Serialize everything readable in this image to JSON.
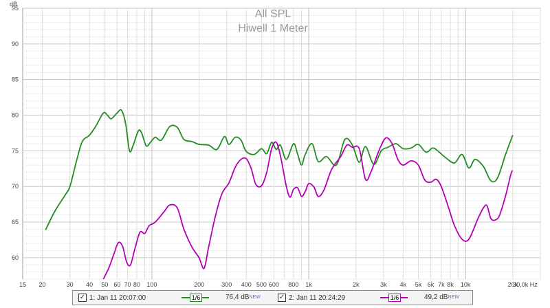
{
  "chart_data": {
    "type": "line",
    "title": "All SPL",
    "subtitle": "Hiwell 1 Meter",
    "ylabel": "dB",
    "xlabel": "Hz",
    "xscale": "log",
    "xlim": [
      15,
      30000
    ],
    "ylim": [
      57,
      95
    ],
    "y_ticks": [
      60,
      65,
      70,
      75,
      80,
      85,
      90,
      95
    ],
    "x_ticks": [
      {
        "v": 15,
        "label": "15"
      },
      {
        "v": 20,
        "label": "20"
      },
      {
        "v": 30,
        "label": "30"
      },
      {
        "v": 40,
        "label": "40"
      },
      {
        "v": 50,
        "label": "50"
      },
      {
        "v": 60,
        "label": "60"
      },
      {
        "v": 70,
        "label": "70"
      },
      {
        "v": 80,
        "label": "80"
      },
      {
        "v": 100,
        "label": "100"
      },
      {
        "v": 200,
        "label": "200"
      },
      {
        "v": 300,
        "label": "300"
      },
      {
        "v": 400,
        "label": "400"
      },
      {
        "v": 500,
        "label": "500"
      },
      {
        "v": 600,
        "label": "600"
      },
      {
        "v": 800,
        "label": "800"
      },
      {
        "v": 1000,
        "label": "1k"
      },
      {
        "v": 2000,
        "label": "2k"
      },
      {
        "v": 3000,
        "label": "3k"
      },
      {
        "v": 4000,
        "label": "4k"
      },
      {
        "v": 5000,
        "label": "5k"
      },
      {
        "v": 6000,
        "label": "6k"
      },
      {
        "v": 7000,
        "label": "7k"
      },
      {
        "v": 8000,
        "label": "8k"
      },
      {
        "v": 10000,
        "label": "10k"
      },
      {
        "v": 20000,
        "label": "20k"
      },
      {
        "v": 30000,
        "label": "30,0k Hz"
      }
    ],
    "grid": true,
    "series": [
      {
        "name": "1: Jan 11 20:07:00",
        "color": "#228b22",
        "points": [
          [
            21,
            63.9
          ],
          [
            24,
            66.5
          ],
          [
            28,
            68.8
          ],
          [
            30,
            70.0
          ],
          [
            33,
            73.5
          ],
          [
            36,
            76.3
          ],
          [
            40,
            77.2
          ],
          [
            44,
            78.5
          ],
          [
            49,
            80.3
          ],
          [
            52,
            80.0
          ],
          [
            55,
            79.5
          ],
          [
            60,
            80.3
          ],
          [
            64,
            80.7
          ],
          [
            68,
            78.8
          ],
          [
            72,
            75.0
          ],
          [
            76,
            75.8
          ],
          [
            82,
            77.8
          ],
          [
            86,
            77.5
          ],
          [
            92,
            75.7
          ],
          [
            98,
            76.2
          ],
          [
            105,
            76.9
          ],
          [
            115,
            76.5
          ],
          [
            130,
            78.4
          ],
          [
            145,
            78.3
          ],
          [
            160,
            76.6
          ],
          [
            180,
            76.3
          ],
          [
            200,
            75.9
          ],
          [
            230,
            75.8
          ],
          [
            260,
            75.2
          ],
          [
            290,
            77.0
          ],
          [
            310,
            75.9
          ],
          [
            340,
            76.9
          ],
          [
            370,
            76.5
          ],
          [
            400,
            74.9
          ],
          [
            450,
            74.5
          ],
          [
            500,
            75.3
          ],
          [
            540,
            74.6
          ],
          [
            580,
            76.2
          ],
          [
            620,
            75.2
          ],
          [
            660,
            75.8
          ],
          [
            720,
            73.8
          ],
          [
            800,
            76.0
          ],
          [
            850,
            74.5
          ],
          [
            900,
            73.0
          ],
          [
            950,
            74.5
          ],
          [
            1050,
            76.0
          ],
          [
            1150,
            73.5
          ],
          [
            1300,
            74.2
          ],
          [
            1500,
            73.0
          ],
          [
            1700,
            76.6
          ],
          [
            1900,
            75.8
          ],
          [
            2100,
            73.4
          ],
          [
            2300,
            75.6
          ],
          [
            2600,
            73.1
          ],
          [
            2900,
            75.0
          ],
          [
            3200,
            75.5
          ],
          [
            3600,
            76.0
          ],
          [
            4000,
            75.3
          ],
          [
            4500,
            75.4
          ],
          [
            5000,
            75.9
          ],
          [
            5600,
            74.8
          ],
          [
            6200,
            75.4
          ],
          [
            6800,
            74.8
          ],
          [
            7500,
            74.0
          ],
          [
            8500,
            73.3
          ],
          [
            9500,
            74.5
          ],
          [
            10500,
            72.6
          ],
          [
            11500,
            73.8
          ],
          [
            13000,
            72.8
          ],
          [
            14500,
            70.8
          ],
          [
            16000,
            71.2
          ],
          [
            18000,
            74.5
          ],
          [
            20000,
            77.2
          ]
        ]
      },
      {
        "name": "2: Jan 11 20:24:29",
        "color": "#b400b4",
        "points": [
          [
            49,
            57.0
          ],
          [
            53,
            58.5
          ],
          [
            57,
            60.4
          ],
          [
            61,
            62.1
          ],
          [
            65,
            61.6
          ],
          [
            69,
            59.4
          ],
          [
            73,
            59.0
          ],
          [
            78,
            61.3
          ],
          [
            84,
            63.6
          ],
          [
            90,
            63.4
          ],
          [
            96,
            64.5
          ],
          [
            105,
            65.0
          ],
          [
            120,
            66.5
          ],
          [
            130,
            67.4
          ],
          [
            145,
            67.0
          ],
          [
            160,
            64.0
          ],
          [
            180,
            61.5
          ],
          [
            200,
            60.0
          ],
          [
            215,
            58.5
          ],
          [
            230,
            61.5
          ],
          [
            255,
            66.0
          ],
          [
            280,
            69.0
          ],
          [
            310,
            70.5
          ],
          [
            340,
            72.7
          ],
          [
            370,
            73.8
          ],
          [
            400,
            73.9
          ],
          [
            430,
            72.5
          ],
          [
            460,
            70.3
          ],
          [
            500,
            70.1
          ],
          [
            540,
            72.0
          ],
          [
            580,
            75.3
          ],
          [
            620,
            76.2
          ],
          [
            660,
            74.3
          ],
          [
            720,
            70.0
          ],
          [
            760,
            68.5
          ],
          [
            800,
            69.6
          ],
          [
            850,
            69.8
          ],
          [
            900,
            68.6
          ],
          [
            950,
            69.3
          ],
          [
            1000,
            70.4
          ],
          [
            1080,
            69.9
          ],
          [
            1150,
            68.6
          ],
          [
            1250,
            69.5
          ],
          [
            1400,
            72.4
          ],
          [
            1600,
            74.2
          ],
          [
            1750,
            75.8
          ],
          [
            1900,
            75.5
          ],
          [
            2100,
            75.3
          ],
          [
            2300,
            71.0
          ],
          [
            2500,
            72.1
          ],
          [
            2800,
            75.0
          ],
          [
            3100,
            76.8
          ],
          [
            3400,
            76.0
          ],
          [
            3700,
            73.8
          ],
          [
            4000,
            73.0
          ],
          [
            4500,
            73.6
          ],
          [
            5000,
            73.0
          ],
          [
            5500,
            70.9
          ],
          [
            6000,
            70.6
          ],
          [
            6500,
            71.0
          ],
          [
            7000,
            70.0
          ],
          [
            7800,
            67.0
          ],
          [
            8500,
            64.5
          ],
          [
            9500,
            62.6
          ],
          [
            10500,
            62.6
          ],
          [
            12000,
            65.5
          ],
          [
            13000,
            67.0
          ],
          [
            13700,
            67.3
          ],
          [
            14500,
            65.5
          ],
          [
            15500,
            65.3
          ],
          [
            16500,
            66.0
          ],
          [
            18000,
            68.7
          ],
          [
            19500,
            71.8
          ],
          [
            20000,
            72.2
          ]
        ]
      }
    ]
  },
  "legend": {
    "items": [
      {
        "check": "✓",
        "name": "1: Jan 11 20:07:00",
        "smoothing": "1/6",
        "level": "76,4 dB",
        "badge": "NEW",
        "color": "#228b22"
      },
      {
        "check": "✓",
        "name": "2: Jan 11 20:24:29",
        "smoothing": "1/6",
        "level": "49,2 dB",
        "badge": "NEW",
        "color": "#b400b4"
      }
    ]
  }
}
